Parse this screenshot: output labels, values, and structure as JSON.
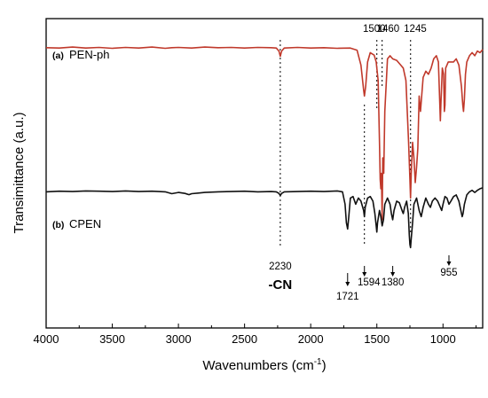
{
  "chart_data": {
    "type": "line",
    "xlabel": "Wavenumbers (cm",
    "xlabel_sup": "-1",
    "xlabel_close": ")",
    "ylabel": "Transimittance (a.u.)",
    "xlim": [
      4000,
      700
    ],
    "x_reversed": true,
    "x_ticks": [
      "4000",
      "3500",
      "3000",
      "2500",
      "2000",
      "1500",
      "1000"
    ],
    "x_tick_values": [
      4000,
      3500,
      3000,
      2500,
      2000,
      1500,
      1000
    ],
    "ylim": [
      0,
      100
    ],
    "grid": false,
    "series": [
      {
        "prefix": "(a)",
        "name": "PEN-ph",
        "color": "#c0392b",
        "points": [
          [
            4000,
            90.6
          ],
          [
            3900,
            90.5
          ],
          [
            3800,
            90.8
          ],
          [
            3700,
            90.5
          ],
          [
            3600,
            90.7
          ],
          [
            3500,
            90.4
          ],
          [
            3400,
            90.7
          ],
          [
            3300,
            90.5
          ],
          [
            3200,
            90.8
          ],
          [
            3100,
            90.4
          ],
          [
            3050,
            90.6
          ],
          [
            3000,
            90.7
          ],
          [
            2900,
            90.5
          ],
          [
            2800,
            90.8
          ],
          [
            2700,
            90.6
          ],
          [
            2600,
            90.7
          ],
          [
            2500,
            90.5
          ],
          [
            2400,
            90.7
          ],
          [
            2300,
            90.6
          ],
          [
            2260,
            90.5
          ],
          [
            2240,
            89.5
          ],
          [
            2230,
            87.8
          ],
          [
            2220,
            89.5
          ],
          [
            2200,
            90.5
          ],
          [
            2100,
            90.7
          ],
          [
            2000,
            90.5
          ],
          [
            1900,
            90.6
          ],
          [
            1800,
            90.4
          ],
          [
            1700,
            90.5
          ],
          [
            1650,
            89.8
          ],
          [
            1620,
            85
          ],
          [
            1600,
            77
          ],
          [
            1594,
            75
          ],
          [
            1585,
            78
          ],
          [
            1570,
            86
          ],
          [
            1550,
            89
          ],
          [
            1520,
            88.2
          ],
          [
            1505,
            86
          ],
          [
            1500,
            84
          ],
          [
            1490,
            80
          ],
          [
            1480,
            60
          ],
          [
            1475,
            48
          ],
          [
            1470,
            45
          ],
          [
            1465,
            50
          ],
          [
            1460,
            35
          ],
          [
            1455,
            55
          ],
          [
            1448,
            50
          ],
          [
            1440,
            70
          ],
          [
            1420,
            87
          ],
          [
            1400,
            88
          ],
          [
            1380,
            87
          ],
          [
            1350,
            86.5
          ],
          [
            1320,
            85
          ],
          [
            1300,
            84
          ],
          [
            1280,
            80
          ],
          [
            1260,
            60
          ],
          [
            1250,
            48
          ],
          [
            1245,
            42
          ],
          [
            1240,
            50
          ],
          [
            1230,
            60
          ],
          [
            1220,
            55
          ],
          [
            1210,
            47
          ],
          [
            1200,
            52
          ],
          [
            1190,
            58
          ],
          [
            1180,
            75
          ],
          [
            1170,
            70
          ],
          [
            1150,
            81
          ],
          [
            1130,
            83
          ],
          [
            1110,
            82
          ],
          [
            1090,
            84
          ],
          [
            1070,
            87
          ],
          [
            1050,
            88
          ],
          [
            1035,
            86
          ],
          [
            1025,
            74
          ],
          [
            1020,
            67
          ],
          [
            1015,
            73
          ],
          [
            1005,
            84
          ],
          [
            995,
            82
          ],
          [
            990,
            70
          ],
          [
            985,
            72
          ],
          [
            980,
            84
          ],
          [
            960,
            86
          ],
          [
            940,
            86
          ],
          [
            920,
            86
          ],
          [
            900,
            87
          ],
          [
            880,
            85
          ],
          [
            860,
            78
          ],
          [
            850,
            72
          ],
          [
            845,
            70
          ],
          [
            838,
            74
          ],
          [
            830,
            82
          ],
          [
            820,
            86
          ],
          [
            800,
            88
          ],
          [
            780,
            89
          ],
          [
            760,
            88
          ],
          [
            740,
            89.5
          ],
          [
            720,
            89
          ],
          [
            700,
            90
          ]
        ]
      },
      {
        "prefix": "(b)",
        "name": "CPEN",
        "color": "#111111",
        "points": [
          [
            4000,
            44
          ],
          [
            3900,
            44.2
          ],
          [
            3800,
            44.1
          ],
          [
            3700,
            44.3
          ],
          [
            3600,
            44.2
          ],
          [
            3500,
            44.1
          ],
          [
            3400,
            44.3
          ],
          [
            3300,
            44.1
          ],
          [
            3200,
            44.2
          ],
          [
            3100,
            44
          ],
          [
            3050,
            43.4
          ],
          [
            3000,
            43.8
          ],
          [
            2950,
            43.5
          ],
          [
            2920,
            43.1
          ],
          [
            2900,
            43.4
          ],
          [
            2850,
            43.6
          ],
          [
            2800,
            43.8
          ],
          [
            2700,
            44
          ],
          [
            2600,
            44.1
          ],
          [
            2500,
            44.2
          ],
          [
            2400,
            44
          ],
          [
            2300,
            44.1
          ],
          [
            2260,
            44
          ],
          [
            2240,
            43.5
          ],
          [
            2230,
            42.8
          ],
          [
            2220,
            43.5
          ],
          [
            2200,
            44
          ],
          [
            2100,
            44.1
          ],
          [
            2000,
            44.2
          ],
          [
            1900,
            44.1
          ],
          [
            1800,
            44.3
          ],
          [
            1760,
            44
          ],
          [
            1740,
            40
          ],
          [
            1730,
            34
          ],
          [
            1721,
            32
          ],
          [
            1712,
            36
          ],
          [
            1700,
            42
          ],
          [
            1680,
            42.5
          ],
          [
            1660,
            40
          ],
          [
            1640,
            42
          ],
          [
            1620,
            41
          ],
          [
            1600,
            38
          ],
          [
            1594,
            36
          ],
          [
            1588,
            39
          ],
          [
            1570,
            42
          ],
          [
            1550,
            42.5
          ],
          [
            1530,
            41
          ],
          [
            1515,
            37
          ],
          [
            1505,
            33
          ],
          [
            1500,
            31
          ],
          [
            1495,
            34
          ],
          [
            1480,
            38
          ],
          [
            1470,
            36
          ],
          [
            1460,
            33
          ],
          [
            1450,
            35
          ],
          [
            1440,
            40
          ],
          [
            1420,
            42
          ],
          [
            1400,
            40
          ],
          [
            1390,
            37
          ],
          [
            1380,
            35
          ],
          [
            1370,
            38
          ],
          [
            1350,
            41
          ],
          [
            1330,
            40.5
          ],
          [
            1310,
            38
          ],
          [
            1300,
            37
          ],
          [
            1290,
            39
          ],
          [
            1275,
            41
          ],
          [
            1262,
            37
          ],
          [
            1255,
            30
          ],
          [
            1250,
            27
          ],
          [
            1245,
            26
          ],
          [
            1240,
            29
          ],
          [
            1230,
            34
          ],
          [
            1220,
            40
          ],
          [
            1200,
            42
          ],
          [
            1180,
            38
          ],
          [
            1165,
            36
          ],
          [
            1150,
            39
          ],
          [
            1130,
            42
          ],
          [
            1110,
            40
          ],
          [
            1095,
            39
          ],
          [
            1080,
            41
          ],
          [
            1060,
            42
          ],
          [
            1040,
            41
          ],
          [
            1020,
            39
          ],
          [
            1010,
            38
          ],
          [
            1000,
            40
          ],
          [
            985,
            42.5
          ],
          [
            970,
            42
          ],
          [
            955,
            40
          ],
          [
            940,
            41
          ],
          [
            920,
            42.5
          ],
          [
            900,
            43
          ],
          [
            880,
            41
          ],
          [
            865,
            38
          ],
          [
            855,
            36
          ],
          [
            848,
            37
          ],
          [
            838,
            40
          ],
          [
            820,
            43
          ],
          [
            800,
            44
          ],
          [
            780,
            44.5
          ],
          [
            760,
            43.8
          ],
          [
            740,
            44.5
          ],
          [
            720,
            45
          ],
          [
            700,
            45.3
          ]
        ]
      }
    ],
    "annotations": [
      {
        "text": "1500",
        "x": 1500,
        "label_pos": "above",
        "line": "red-dotted-top"
      },
      {
        "text": "1460",
        "x": 1460,
        "label_pos": "above",
        "line": "red-dotted-top"
      },
      {
        "text": "1245",
        "x": 1245,
        "label_pos": "above",
        "line": "red-dotted-top"
      },
      {
        "text": "2230",
        "x": 2230,
        "label_pos": "below",
        "line": "full-dotted"
      },
      {
        "text": "-CN",
        "x": 2230,
        "label_pos": "below",
        "bold": true
      },
      {
        "text": "1721",
        "x": 1721,
        "label_pos": "below",
        "arrow": true
      },
      {
        "text": "1594",
        "x": 1594,
        "label_pos": "below",
        "arrow": true
      },
      {
        "text": "1380",
        "x": 1380,
        "label_pos": "below",
        "arrow": true
      },
      {
        "text": "955",
        "x": 955,
        "label_pos": "below",
        "arrow": true
      }
    ]
  }
}
